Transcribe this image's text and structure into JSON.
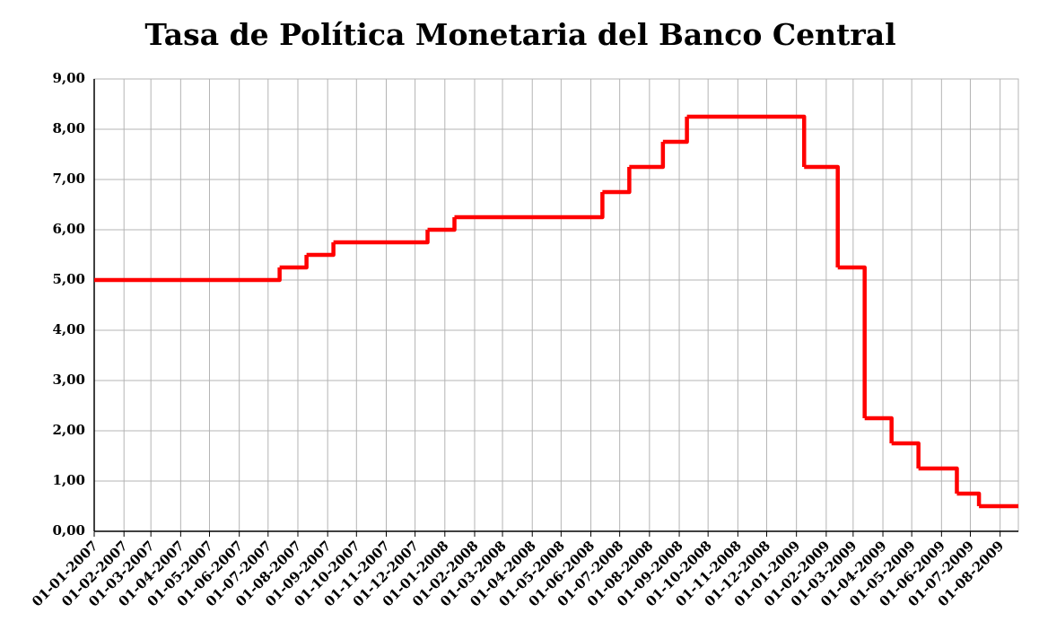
{
  "chart_data": {
    "type": "step",
    "title": "Tasa de Política Monetaria del Banco Central",
    "x": [
      "2007-01-01",
      "2007-07-13",
      "2007-08-10",
      "2007-09-07",
      "2007-12-14",
      "2008-01-11",
      "2008-06-13",
      "2008-07-11",
      "2008-08-15",
      "2008-09-09",
      "2009-01-09",
      "2009-02-13",
      "2009-03-13",
      "2009-04-10",
      "2009-05-08",
      "2009-06-17",
      "2009-07-10",
      "2009-08-20"
    ],
    "values": [
      5,
      5.25,
      5.5,
      5.75,
      6,
      6.25,
      6.75,
      7.25,
      7.75,
      8.25,
      7.25,
      5.25,
      2.25,
      1.75,
      1.25,
      0.75,
      0.5,
      0.5
    ],
    "color": "#ff0000",
    "xlim": [
      "2007-01-01",
      "2009-08-20"
    ],
    "xticks": [
      {
        "value": "2007-01-01",
        "label": "01-01-2007"
      },
      {
        "value": "2007-02-01",
        "label": "01-02-2007"
      },
      {
        "value": "2007-03-01",
        "label": "01-03-2007"
      },
      {
        "value": "2007-04-01",
        "label": "01-04-2007"
      },
      {
        "value": "2007-05-01",
        "label": "01-05-2007"
      },
      {
        "value": "2007-06-01",
        "label": "01-06-2007"
      },
      {
        "value": "2007-07-01",
        "label": "01-07-2007"
      },
      {
        "value": "2007-08-01",
        "label": "01-08-2007"
      },
      {
        "value": "2007-09-01",
        "label": "01-09-2007"
      },
      {
        "value": "2007-10-01",
        "label": "01-10-2007"
      },
      {
        "value": "2007-11-01",
        "label": "01-11-2007"
      },
      {
        "value": "2007-12-01",
        "label": "01-12-2007"
      },
      {
        "value": "2008-01-01",
        "label": "01-01-2008"
      },
      {
        "value": "2008-02-01",
        "label": "01-02-2008"
      },
      {
        "value": "2008-03-01",
        "label": "01-03-2008"
      },
      {
        "value": "2008-04-01",
        "label": "01-04-2008"
      },
      {
        "value": "2008-05-01",
        "label": "01-05-2008"
      },
      {
        "value": "2008-06-01",
        "label": "01-06-2008"
      },
      {
        "value": "2008-07-01",
        "label": "01-07-2008"
      },
      {
        "value": "2008-08-01",
        "label": "01-08-2008"
      },
      {
        "value": "2008-09-01",
        "label": "01-09-2008"
      },
      {
        "value": "2008-10-01",
        "label": "01-10-2008"
      },
      {
        "value": "2008-11-01",
        "label": "01-11-2008"
      },
      {
        "value": "2008-12-01",
        "label": "01-12-2008"
      },
      {
        "value": "2009-01-01",
        "label": "01-01-2009"
      },
      {
        "value": "2009-02-01",
        "label": "01-02-2009"
      },
      {
        "value": "2009-03-01",
        "label": "01-03-2009"
      },
      {
        "value": "2009-04-01",
        "label": "01-04-2009"
      },
      {
        "value": "2009-05-01",
        "label": "01-05-2009"
      },
      {
        "value": "2009-06-01",
        "label": "01-06-2009"
      },
      {
        "value": "2009-07-01",
        "label": "01-07-2009"
      },
      {
        "value": "2009-08-01",
        "label": "01-08-2009"
      }
    ],
    "ylim": [
      0,
      9
    ],
    "yticks": [
      {
        "value": 0,
        "label": "0,00"
      },
      {
        "value": 1,
        "label": "1,00"
      },
      {
        "value": 2,
        "label": "2,00"
      },
      {
        "value": 3,
        "label": "3,00"
      },
      {
        "value": 4,
        "label": "4,00"
      },
      {
        "value": 5,
        "label": "5,00"
      },
      {
        "value": 6,
        "label": "6,00"
      },
      {
        "value": 7,
        "label": "7,00"
      },
      {
        "value": 8,
        "label": "8,00"
      },
      {
        "value": 9,
        "label": "9,00"
      }
    ],
    "grid": true
  }
}
